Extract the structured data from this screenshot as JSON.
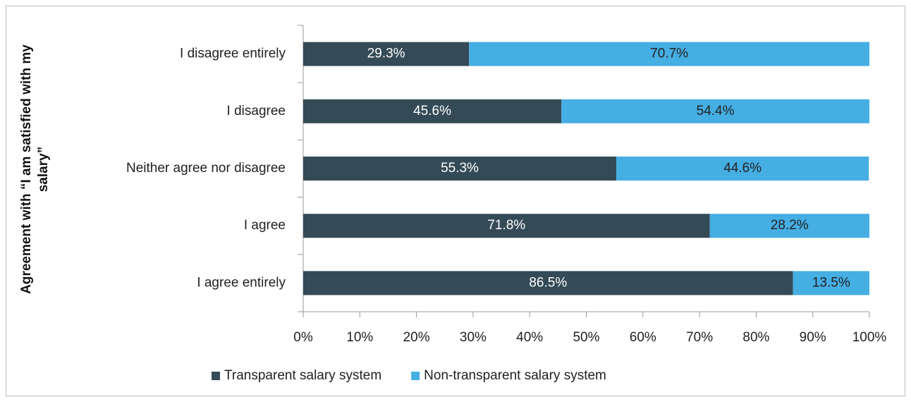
{
  "chart_data": {
    "type": "stacked_bar_horizontal",
    "y_label": "Agreement with “I am satisfied with my salary”",
    "categories": [
      "I disagree entirely",
      "I disagree",
      "Neither agree nor disagree",
      "I agree",
      "I agree entirely"
    ],
    "series": [
      {
        "name": "Transparent salary system",
        "color": "#354a57",
        "label_color": "#ffffff",
        "values": [
          29.3,
          45.6,
          55.3,
          71.8,
          86.5
        ],
        "value_labels": [
          "29.3%",
          "45.6%",
          "55.3%",
          "71.8%",
          "86.5%"
        ]
      },
      {
        "name": "Non-transparent salary system",
        "color": "#45aee3",
        "label_color": "#222222",
        "values": [
          70.7,
          54.4,
          44.6,
          28.2,
          13.5
        ],
        "value_labels": [
          "70.7%",
          "54.4%",
          "44.6%",
          "28.2%",
          "13.5%"
        ]
      }
    ],
    "xlim": [
      0,
      100
    ],
    "xticks": [
      {
        "value": 0,
        "label": "0%"
      },
      {
        "value": 10,
        "label": "10%"
      },
      {
        "value": 20,
        "label": "20%"
      },
      {
        "value": 30,
        "label": "30%"
      },
      {
        "value": 40,
        "label": "40%"
      },
      {
        "value": 50,
        "label": "50%"
      },
      {
        "value": 60,
        "label": "60%"
      },
      {
        "value": 70,
        "label": "70%"
      },
      {
        "value": 80,
        "label": "80%"
      },
      {
        "value": 90,
        "label": "90%"
      },
      {
        "value": 100,
        "label": "100%"
      }
    ],
    "grid": false,
    "legend": "bottom"
  }
}
